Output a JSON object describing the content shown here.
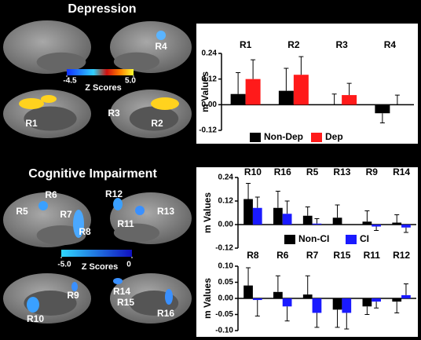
{
  "brain_panels": [
    {
      "title": "Depression",
      "colorbar": {
        "label": "Z Scores",
        "ticks": [
          -4.5,
          {
            "value": 5.0,
            "label": "5.0"
          }
        ]
      },
      "regions": [
        "R4",
        "R1",
        "R3",
        "R2"
      ]
    },
    {
      "title": "Cognitive Impairment",
      "colorbar": {
        "label": "Z Scores",
        "ticks": [
          {
            "value": -5.0,
            "label": "-5.0"
          },
          0
        ]
      },
      "regions": [
        "R6",
        "R12",
        "R5",
        "R7",
        "R13",
        "R11",
        "R8",
        "R9",
        "R14",
        "R15",
        "R10",
        "R16"
      ]
    }
  ],
  "chart_data": [
    {
      "type": "bar",
      "y_label": "m Values",
      "categories": [
        "R1",
        "R2",
        "R3",
        "R4"
      ],
      "series": [
        {
          "name": "Non-Dep",
          "color": "#000000",
          "values": [
            0.05,
            0.065,
            0,
            -0.04
          ],
          "errors": [
            0.1,
            0.105,
            0.05,
            0.045
          ]
        },
        {
          "name": "Dep",
          "color": "#ff1a1a",
          "values": [
            0.12,
            0.14,
            0.045,
            0
          ],
          "errors": [
            0.09,
            0.085,
            0.055,
            0.045
          ]
        }
      ],
      "ylim": [
        -0.12,
        0.24
      ],
      "yticks": [
        -0.12,
        {
          "value": 0,
          "label": "0.00"
        },
        0.12,
        0.24
      ],
      "legend": true
    },
    {
      "type": "bar",
      "y_label": "m Values",
      "categories": [
        "R10",
        "R16",
        "R5",
        "R13",
        "R9",
        "R14"
      ],
      "series": [
        {
          "name": "Non-CI",
          "color": "#000000",
          "values": [
            0.13,
            0.085,
            0.045,
            0.035,
            0.015,
            0.01
          ],
          "errors": [
            0.08,
            0.085,
            0.045,
            0.065,
            0.055,
            0.04
          ]
        },
        {
          "name": "CI",
          "color": "#1a1aff",
          "values": [
            0.085,
            0.055,
            0.005,
            0.0,
            -0.01,
            -0.015
          ],
          "errors": [
            0.055,
            0.065,
            0.025,
            0.0,
            0.02,
            0.025
          ]
        }
      ],
      "ylim": [
        -0.12,
        0.24
      ],
      "yticks": [
        -0.12,
        {
          "value": 0,
          "label": "0.00"
        },
        0.12,
        0.24
      ],
      "legend": true
    },
    {
      "type": "bar",
      "y_label": "m Values",
      "categories": [
        "R8",
        "R6",
        "R7",
        "R15",
        "R11",
        "R12"
      ],
      "series": [
        {
          "values": [
            0.04,
            0.02,
            0.012,
            -0.035,
            -0.025,
            -0.01
          ],
          "errors": [
            0.055,
            0.05,
            0.058,
            0.055,
            0.025,
            0.035
          ],
          "color": "#000000"
        },
        {
          "values": [
            -0.005,
            -0.025,
            -0.045,
            -0.045,
            -0.01,
            0.01
          ],
          "errors": [
            0.05,
            0.045,
            0.045,
            0.05,
            0.02,
            0.035
          ],
          "color": "#1a1aff"
        }
      ],
      "ylim": [
        -0.1,
        0.1
      ],
      "yticks": [
        {
          "value": -0.1,
          "label": "-0.10"
        },
        -0.05,
        {
          "value": 0,
          "label": "0.00"
        },
        0.05,
        {
          "value": 0.1,
          "label": "0.10"
        }
      ],
      "legend": false
    }
  ]
}
